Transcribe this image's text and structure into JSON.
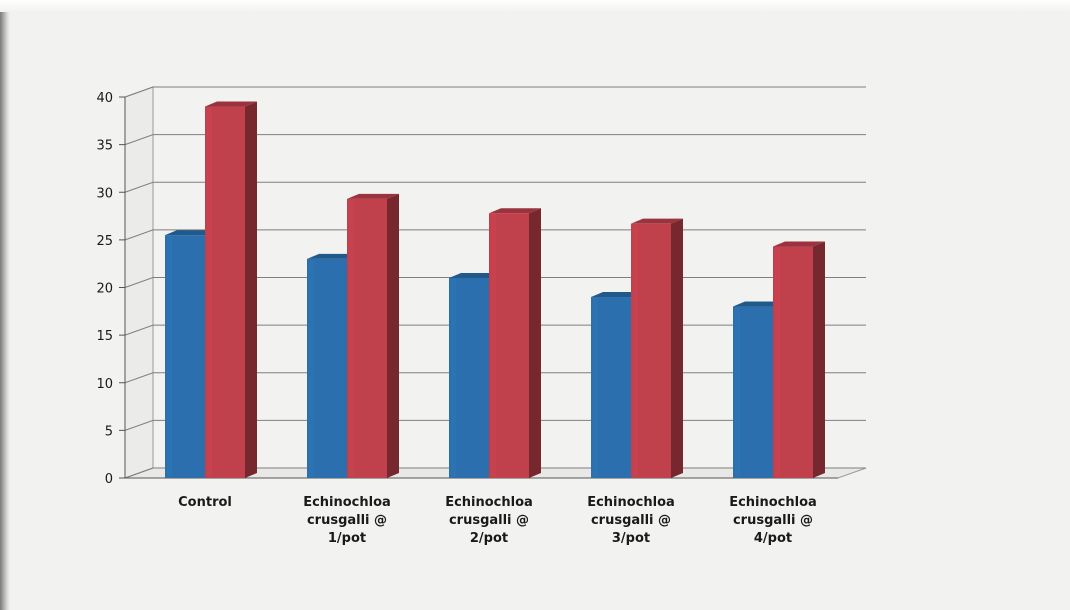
{
  "chart_data": {
    "type": "bar",
    "categories": [
      [
        "Control"
      ],
      [
        "Echinochloa",
        "crusgalli @",
        "1/pot"
      ],
      [
        "Echinochloa",
        "crusgalli @",
        "2/pot"
      ],
      [
        "Echinochloa",
        "crusgalli @",
        "3/pot"
      ],
      [
        "Echinochloa",
        "crusgalli @",
        "4/pot"
      ]
    ],
    "series": [
      {
        "color": "#2b6fae",
        "values": [
          25.5,
          23,
          21,
          19,
          18
        ]
      },
      {
        "color": "#c0404c",
        "values": [
          39,
          29.3,
          27.8,
          26.7,
          24.3
        ]
      }
    ],
    "ylim": [
      0,
      40
    ],
    "yticks": [
      "0",
      "5",
      "10",
      "15",
      "20",
      "25",
      "30",
      "35",
      "40"
    ],
    "grid": true,
    "style": "3d-clustered-column"
  }
}
